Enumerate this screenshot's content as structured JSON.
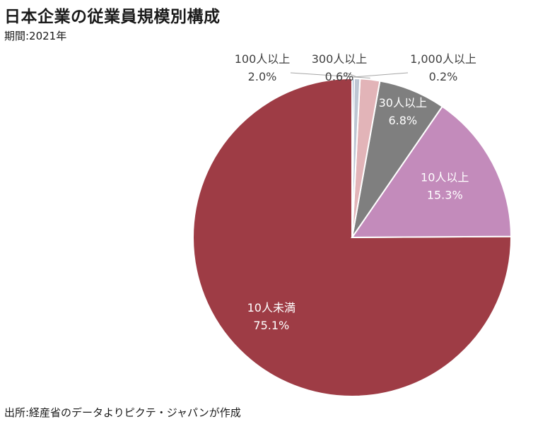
{
  "title": "日本企業の従業員規模別構成",
  "subtitle": "期間:2021年",
  "source": "出所:経産省のデータよりピクテ・ジャパンが作成",
  "chart_data": {
    "type": "pie",
    "categories": [
      "10人未満",
      "10人以上",
      "30人以上",
      "100人以上",
      "300人以上",
      "1,000人以上"
    ],
    "values": [
      75.1,
      15.3,
      6.8,
      2.0,
      0.6,
      0.2
    ],
    "value_labels": [
      "75.1%",
      "15.3%",
      "6.8%",
      "2.0%",
      "0.6%",
      "0.2%"
    ],
    "colors": [
      "#9e3c45",
      "#c38bbb",
      "#7f7f7f",
      "#e2b4b8",
      "#bdc6d3",
      "#6f8fb6"
    ],
    "start_angle_deg": 0,
    "direction": "counterclockwise",
    "legend": "none"
  }
}
